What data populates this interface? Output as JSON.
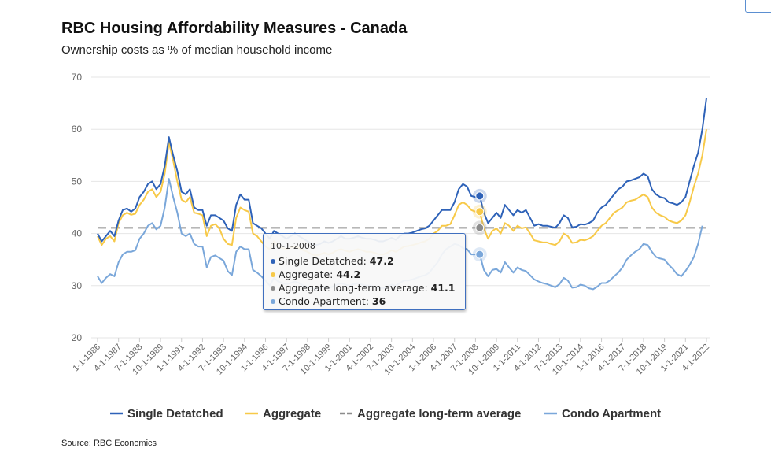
{
  "title": "RBC Housing Affordability Measures - Canada",
  "subtitle": "Ownership costs as % of median household income",
  "source": "Source: RBC Economics",
  "tooltip": {
    "date": "10-1-2008",
    "rows": [
      {
        "name": "Single Detatched",
        "value": "47.2",
        "color": "#2e62b8"
      },
      {
        "name": "Aggregate",
        "value": "44.2",
        "color": "#f7c948"
      },
      {
        "name": "Aggregate long-term average",
        "value": "41.1",
        "color": "#8c8c8c"
      },
      {
        "name": "Condo Apartment",
        "value": "36",
        "color": "#7aa7da"
      }
    ]
  },
  "chart_data": {
    "type": "line",
    "title": "RBC Housing Affordability Measures - Canada",
    "ylabel": "Ownership costs as % of median household income",
    "xlabel": "",
    "ylim": [
      20,
      70
    ],
    "yticks": [
      20,
      30,
      40,
      50,
      60,
      70
    ],
    "x_start": "1986Q1",
    "frequency": "quarterly",
    "x_labels": [
      "1-1-1986",
      "4-1-1987",
      "7-1-1988",
      "10-1-1989",
      "1-1-1991",
      "4-1-1992",
      "7-1-1993",
      "10-1-1994",
      "1-1-1996",
      "4-1-1997",
      "7-1-1998",
      "10-1-1999",
      "1-1-2001",
      "4-1-2002",
      "7-1-2003",
      "10-1-2004",
      "1-1-2006",
      "4-1-2007",
      "7-1-2008",
      "10-1-2009",
      "1-1-2011",
      "4-1-2012",
      "7-1-2013",
      "10-1-2014",
      "1-1-2016",
      "4-1-2017",
      "7-1-2018",
      "10-1-2019",
      "1-1-2021",
      "4-1-2022"
    ],
    "legend": [
      "Single Detatched",
      "Aggregate",
      "Aggregate long-term average",
      "Condo Apartment"
    ],
    "legend_position": "bottom",
    "highlight": {
      "date": "10-1-2008",
      "index": 91
    },
    "series": [
      {
        "name": "Single Detatched",
        "color": "#2e62b8",
        "dash": false,
        "values": [
          40,
          38.5,
          39.5,
          40.5,
          39.5,
          42.5,
          44.5,
          44.8,
          44.2,
          44.8,
          47,
          48,
          49.5,
          50,
          48.5,
          49.5,
          53,
          58.5,
          55,
          52,
          48,
          47.5,
          48.5,
          45,
          44.5,
          44.5,
          41.5,
          43.5,
          43.5,
          43,
          42.5,
          41,
          40.5,
          45.5,
          47.5,
          46.5,
          46.5,
          42,
          41.5,
          41,
          40,
          39,
          40.5,
          40,
          39.5,
          39,
          39.5,
          40,
          39.5,
          39,
          38.5,
          38,
          37.8,
          38,
          38.5,
          38.2,
          38.5,
          39,
          39.5,
          39,
          39,
          39.2,
          39.5,
          39.2,
          39,
          39,
          38.8,
          38.5,
          38.5,
          38.8,
          39.2,
          38.8,
          39.5,
          40,
          40,
          40.2,
          40.5,
          40.8,
          41,
          41.5,
          42.5,
          43.5,
          44.5,
          44.5,
          44.5,
          46,
          48.5,
          49.5,
          49,
          47.2,
          47,
          47.2,
          44,
          42,
          43,
          44,
          43,
          45.5,
          44.5,
          43.5,
          44.5,
          44,
          44.5,
          43,
          41.5,
          41.8,
          41.5,
          41.5,
          41.3,
          41.1,
          42,
          43.5,
          43,
          41.2,
          41.3,
          41.8,
          41.7,
          42,
          42.5,
          44,
          45,
          45.5,
          46.5,
          47.5,
          48.5,
          49,
          50,
          50.2,
          50.5,
          50.8,
          51.5,
          51,
          48.5,
          47.5,
          47,
          46.8,
          46,
          45.8,
          45.5,
          46,
          47,
          50,
          53,
          55.5,
          60,
          66
        ]
      },
      {
        "name": "Aggregate",
        "color": "#f7c948",
        "dash": false,
        "values": [
          39.5,
          37.8,
          39,
          39.5,
          38.5,
          42,
          43.5,
          44,
          43.6,
          43.8,
          45.5,
          46.5,
          48,
          48.5,
          47,
          48,
          51.5,
          57.5,
          54,
          50,
          46.5,
          46,
          47,
          44,
          43.8,
          43.5,
          39.5,
          41.5,
          41.8,
          41,
          39,
          38,
          37.8,
          43,
          45,
          44.5,
          44.2,
          40,
          39.5,
          38.5,
          37.5,
          37,
          38.5,
          37.5,
          37.2,
          37,
          37.3,
          37.5,
          37.2,
          36.8,
          36.5,
          36,
          35.8,
          36,
          36.3,
          36,
          36.3,
          36.8,
          37,
          36.7,
          36.5,
          36.8,
          37,
          36.8,
          36.5,
          36.5,
          36.3,
          36,
          36,
          36.3,
          36.8,
          36.5,
          37,
          37.5,
          37.6,
          37.8,
          38,
          38.3,
          38.5,
          39,
          40,
          40.5,
          41.5,
          41.5,
          41.8,
          43.5,
          45.5,
          46,
          45.5,
          44.5,
          44.2,
          44.2,
          41,
          39,
          40.5,
          41,
          40,
          42,
          41.5,
          40.5,
          41.5,
          41,
          41.2,
          40,
          38.7,
          38.5,
          38.3,
          38.3,
          38,
          37.8,
          38.5,
          40,
          39.5,
          38.2,
          38.3,
          38.8,
          38.7,
          39,
          39.5,
          40.5,
          41.5,
          42,
          43,
          44,
          44.5,
          45,
          46,
          46.3,
          46.5,
          47,
          47.5,
          47,
          45,
          44,
          43.5,
          43.2,
          42.5,
          42.2,
          42,
          42.5,
          43.5,
          46,
          49,
          51.5,
          55,
          60
        ]
      },
      {
        "name": "Aggregate long-term average",
        "color": "#8c8c8c",
        "dash": true,
        "constant": 41.1
      },
      {
        "name": "Condo Apartment",
        "color": "#7aa7da",
        "dash": false,
        "values": [
          31.8,
          30.5,
          31.5,
          32.2,
          31.8,
          34.5,
          36,
          36.5,
          36.5,
          36.8,
          39,
          40,
          41.5,
          42,
          40.8,
          41.5,
          45,
          50.5,
          47,
          44,
          40,
          39.5,
          40,
          38,
          37.5,
          37.5,
          33.5,
          35.5,
          35.8,
          35.3,
          34.8,
          32.8,
          32,
          36.5,
          37.5,
          37,
          37,
          33,
          32.5,
          31.8,
          31,
          30,
          31.5,
          30.8,
          30.5,
          30.3,
          30.5,
          30.8,
          30.5,
          30,
          29.8,
          29.5,
          29.3,
          29.5,
          29.8,
          29.5,
          29.8,
          30.2,
          30.5,
          30.2,
          30,
          30.3,
          30.5,
          30.2,
          30,
          30,
          29.8,
          29.5,
          29.5,
          29.8,
          30.2,
          30,
          30.5,
          31,
          31,
          31.2,
          31.5,
          31.8,
          32,
          32.5,
          33.5,
          34.5,
          36,
          37,
          37.5,
          38,
          37.8,
          37.2,
          37,
          36,
          36,
          36,
          33,
          31.8,
          33,
          33.2,
          32.5,
          34.5,
          33.5,
          32.5,
          33.5,
          33,
          32.8,
          32,
          31.2,
          30.8,
          30.5,
          30.3,
          30,
          29.7,
          30.3,
          31.5,
          31,
          29.6,
          29.7,
          30.2,
          30,
          29.5,
          29.3,
          29.8,
          30.5,
          30.5,
          31,
          31.8,
          32.5,
          33.5,
          35,
          35.8,
          36.5,
          37,
          38,
          37.8,
          36.5,
          35.5,
          35.2,
          35,
          34,
          33.2,
          32.2,
          31.8,
          32.8,
          34,
          35.5,
          38,
          41.5
        ]
      }
    ]
  }
}
